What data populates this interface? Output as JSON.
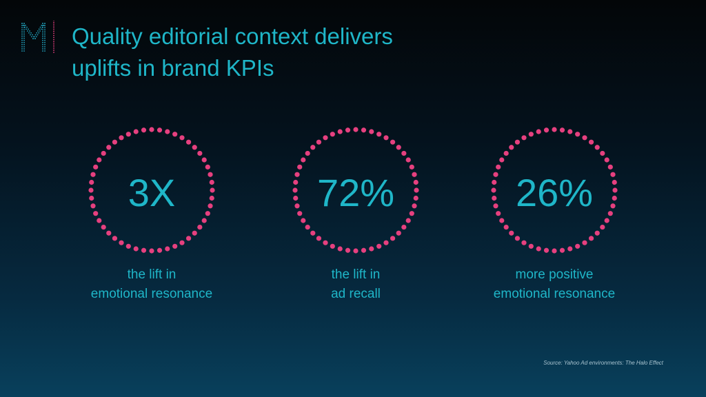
{
  "colors": {
    "accent": "#1fb6c8",
    "dots": "#e6407f",
    "logo": "#22a7c3"
  },
  "logo": {
    "icon": "dotted-m-logo-icon"
  },
  "title": {
    "line1": "Quality editorial context delivers",
    "line2": "uplifts in brand KPIs"
  },
  "stats": [
    {
      "value": "3X",
      "caption_line1": "the lift in",
      "caption_line2": "emotional resonance"
    },
    {
      "value": "72%",
      "caption_line1": "the lift in",
      "caption_line2": "ad recall"
    },
    {
      "value": "26%",
      "caption_line1": "more positive",
      "caption_line2": "emotional resonance"
    }
  ],
  "source": "Source: Yahoo Ad environments: The Halo Effect"
}
